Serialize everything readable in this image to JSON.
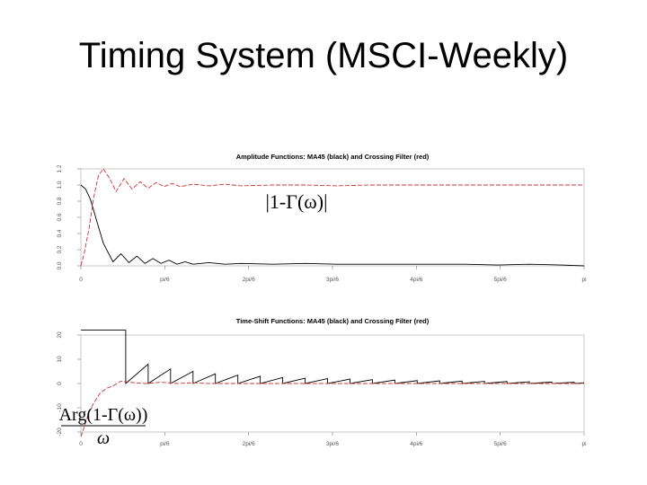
{
  "slide": {
    "title": "Timing System (MSCI-Weekly)"
  },
  "chart_data": [
    {
      "type": "line",
      "title": "Amplitude Functions: MA45 (black) and Crossing Filter (red)",
      "annotation": "|1-Γ(ω)|",
      "x_ticks": [
        "0",
        "pi/6",
        "2pi/6",
        "3pi/6",
        "4pi/6",
        "5pi/6",
        "pi"
      ],
      "y_ticks": [
        "0.0",
        "0.2",
        "0.4",
        "0.6",
        "0.8",
        "1.0",
        "1.2"
      ],
      "xlim": [
        0,
        3.1416
      ],
      "ylim": [
        0,
        1.2
      ],
      "grid": false,
      "series": [
        {
          "color": "#000000",
          "x": [
            0,
            0.03,
            0.06,
            0.1,
            0.14,
            0.2,
            0.25,
            0.3,
            0.35,
            0.4,
            0.45,
            0.5,
            0.55,
            0.6,
            0.65,
            0.7,
            0.8,
            0.9,
            1.0,
            1.2,
            1.4,
            1.6,
            1.8,
            2.0,
            2.2,
            2.4,
            2.6,
            2.8,
            3.0,
            3.1416
          ],
          "y": [
            1.0,
            0.95,
            0.82,
            0.55,
            0.28,
            0.05,
            0.15,
            0.04,
            0.12,
            0.03,
            0.09,
            0.03,
            0.07,
            0.02,
            0.05,
            0.02,
            0.04,
            0.02,
            0.03,
            0.02,
            0.03,
            0.02,
            0.02,
            0.02,
            0.02,
            0.02,
            0.01,
            0.02,
            0.01,
            0.0
          ]
        },
        {
          "color": "#cc3333",
          "x": [
            0,
            0.02,
            0.05,
            0.08,
            0.11,
            0.14,
            0.18,
            0.22,
            0.27,
            0.32,
            0.37,
            0.42,
            0.47,
            0.52,
            0.57,
            0.62,
            0.7,
            0.8,
            0.9,
            1.0,
            1.2,
            1.4,
            1.6,
            1.8,
            2.0,
            2.2,
            2.4,
            2.6,
            2.8,
            3.0,
            3.1416
          ],
          "y": [
            0.0,
            0.15,
            0.45,
            0.85,
            1.12,
            1.2,
            1.08,
            0.92,
            1.08,
            0.95,
            1.04,
            0.96,
            1.03,
            0.98,
            1.02,
            0.98,
            1.01,
            0.99,
            1.01,
            0.99,
            1.0,
            1.0,
            0.99,
            1.0,
            1.0,
            1.0,
            1.0,
            1.0,
            1.0,
            1.0,
            1.0
          ]
        }
      ]
    },
    {
      "type": "line",
      "title": "Time-Shift Functions: MA45 (black) and Crossing Filter (red)",
      "annotation": "Arg(1-Γ(ω))",
      "x_annotation": "ω",
      "x_ticks": [
        "0",
        "pi/6",
        "2pi/6",
        "3pi/6",
        "4pi/6",
        "5pi/6",
        "pi"
      ],
      "y_ticks": [
        "-20",
        "-10",
        "0",
        "10",
        "20"
      ],
      "xlim": [
        0,
        3.1416
      ],
      "ylim": [
        -20,
        20
      ],
      "grid": false,
      "series": [
        {
          "color": "#000000",
          "x": [
            0,
            0.14,
            0.14,
            0.28,
            0.28,
            0.28,
            0.42,
            0.42,
            0.56,
            0.56,
            0.7,
            0.7,
            0.84,
            0.84,
            0.98,
            0.98,
            1.12,
            1.12,
            1.26,
            1.26,
            1.4,
            1.4,
            1.54,
            1.54,
            1.68,
            1.68,
            1.82,
            1.82,
            1.96,
            1.96,
            2.1,
            2.1,
            2.24,
            2.24,
            2.38,
            2.38,
            2.52,
            2.52,
            2.66,
            2.66,
            2.8,
            2.8,
            2.94,
            2.94,
            3.08,
            3.08,
            3.1416
          ],
          "y": [
            22,
            22,
            22,
            22,
            11,
            0,
            8,
            0,
            6,
            0,
            5,
            0,
            4,
            0,
            3.5,
            0,
            3,
            0,
            2.5,
            0,
            2.2,
            0,
            2,
            0,
            1.8,
            0,
            1.6,
            0,
            1.4,
            0,
            1.2,
            0,
            1.1,
            0,
            1,
            0,
            0.9,
            0,
            0.8,
            0,
            0.7,
            0,
            0.6,
            0,
            0.5,
            0,
            0.3
          ]
        },
        {
          "color": "#cc3333",
          "x": [
            0,
            0.02,
            0.05,
            0.08,
            0.12,
            0.16,
            0.2,
            0.25,
            0.3,
            0.4,
            0.5,
            0.6,
            0.7,
            0.8,
            1.0,
            1.2,
            1.5,
            2.0,
            2.5,
            3.1416
          ],
          "y": [
            -22,
            -18,
            -12,
            -8,
            -4,
            -2,
            -1,
            1,
            0.5,
            0,
            0.5,
            0,
            0.3,
            0,
            0,
            0,
            0,
            0,
            0,
            0
          ]
        }
      ]
    }
  ]
}
